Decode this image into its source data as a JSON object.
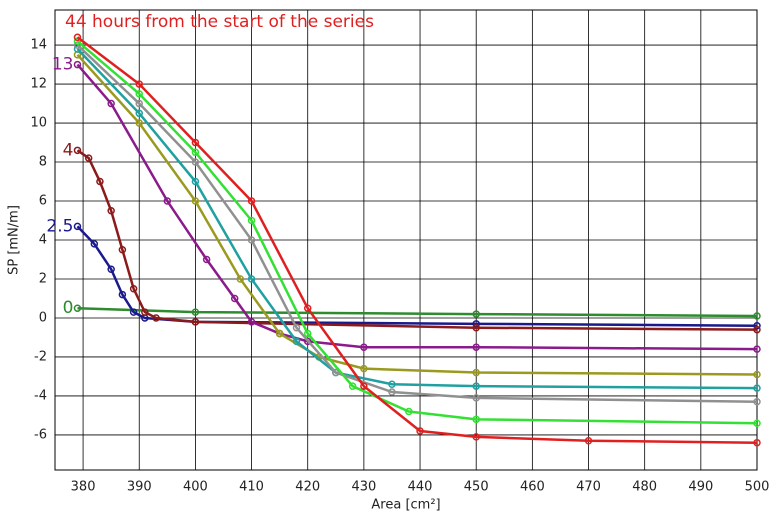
{
  "chart_data": {
    "type": "line",
    "x_label": "Area [cm²]",
    "y_label": "SP [mN/m]",
    "xlim": [
      375,
      500
    ],
    "ylim": [
      -7.8,
      15.8
    ],
    "xticks": [
      380,
      390,
      400,
      410,
      420,
      430,
      440,
      450,
      460,
      470,
      480,
      490,
      500
    ],
    "yticks": [
      -6,
      -4,
      -2,
      0,
      2,
      4,
      6,
      8,
      10,
      12,
      14
    ],
    "grid": true,
    "series": [
      {
        "name": "0",
        "color": "#2e8b2e",
        "x": [
          379,
          400,
          450,
          500
        ],
        "values": [
          0.5,
          0.3,
          0.2,
          0.1
        ]
      },
      {
        "name": "2.5",
        "color": "#1a1a8c",
        "x": [
          379,
          382,
          385,
          387,
          389,
          391,
          400,
          450,
          500
        ],
        "values": [
          4.7,
          3.8,
          2.5,
          1.2,
          0.3,
          0,
          -0.2,
          -0.3,
          -0.4
        ]
      },
      {
        "name": "4",
        "color": "#8b1a1a",
        "x": [
          379,
          381,
          383,
          385,
          387,
          389,
          391,
          393,
          400,
          450,
          500
        ],
        "values": [
          8.6,
          8.2,
          7,
          5.5,
          3.5,
          1.5,
          0.3,
          0,
          -0.2,
          -0.5,
          -0.6
        ]
      },
      {
        "name": "13",
        "color": "#8b1a8b",
        "x": [
          379,
          385,
          395,
          402,
          407,
          410,
          415,
          420,
          430,
          450,
          500
        ],
        "values": [
          13.0,
          11,
          6,
          3,
          1,
          -0.2,
          -0.8,
          -1.2,
          -1.5,
          -1.5,
          -1.6
        ]
      },
      {
        "color": "#9a9a20",
        "x": [
          379,
          390,
          400,
          408,
          415,
          422,
          430,
          450,
          500
        ],
        "values": [
          13.5,
          10,
          6,
          2,
          -0.8,
          -2,
          -2.6,
          -2.8,
          -2.9
        ]
      },
      {
        "color": "#20a0a0",
        "x": [
          379,
          390,
          400,
          410,
          418,
          425,
          435,
          450,
          500
        ],
        "values": [
          13.8,
          10.5,
          7,
          2,
          -1.2,
          -2.8,
          -3.4,
          -3.5,
          -3.6
        ]
      },
      {
        "color": "#909090",
        "x": [
          379,
          390,
          400,
          410,
          418,
          425,
          435,
          450,
          500
        ],
        "values": [
          14.0,
          11,
          8,
          4,
          -0.5,
          -2.8,
          -3.8,
          -4.1,
          -4.3
        ]
      },
      {
        "color": "#33e033",
        "x": [
          379,
          390,
          400,
          410,
          420,
          428,
          438,
          450,
          500
        ],
        "values": [
          14.2,
          11.5,
          8.5,
          5,
          -0.8,
          -3.5,
          -4.8,
          -5.2,
          -5.4
        ]
      },
      {
        "name": "44 hours from the start of the series",
        "color": "#e02020",
        "x": [
          379,
          390,
          400,
          410,
          420,
          430,
          440,
          450,
          470,
          500
        ],
        "values": [
          14.4,
          12,
          9,
          6,
          0.5,
          -3.5,
          -5.8,
          -6.1,
          -6.3,
          -6.4
        ]
      }
    ]
  }
}
